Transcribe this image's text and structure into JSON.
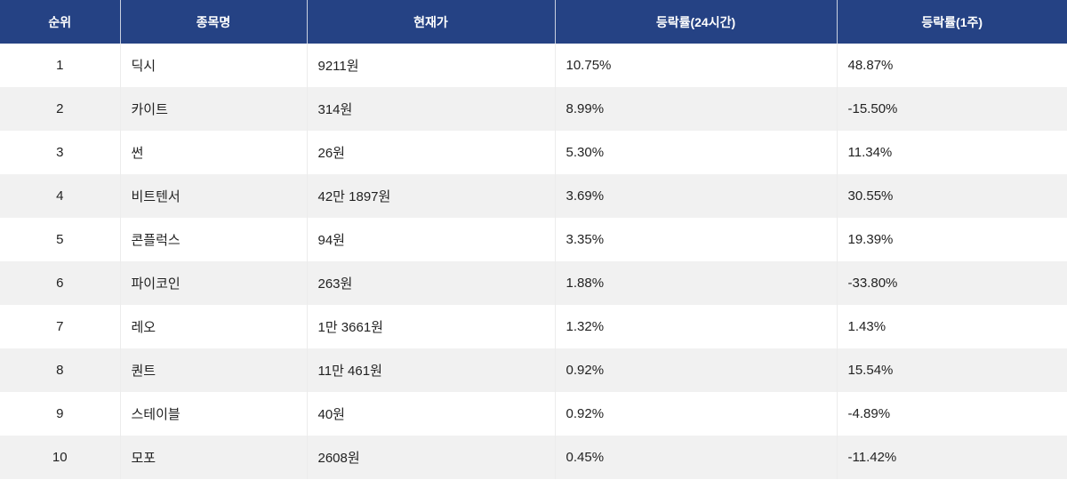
{
  "header": {
    "rank": "순위",
    "name": "종목명",
    "price": "현재가",
    "change24h": "등락률(24시간)",
    "change1w": "등락률(1주)"
  },
  "colors": {
    "header_bg": "#254284",
    "stripe": "#f1f1f1"
  },
  "rows": [
    {
      "rank": "1",
      "name": "딕시",
      "price": "9211원",
      "change24h": "10.75%",
      "change1w": "48.87%"
    },
    {
      "rank": "2",
      "name": "카이트",
      "price": "314원",
      "change24h": "8.99%",
      "change1w": "-15.50%"
    },
    {
      "rank": "3",
      "name": "썬",
      "price": "26원",
      "change24h": "5.30%",
      "change1w": "11.34%"
    },
    {
      "rank": "4",
      "name": "비트텐서",
      "price": "42만 1897원",
      "change24h": "3.69%",
      "change1w": "30.55%"
    },
    {
      "rank": "5",
      "name": "콘플럭스",
      "price": "94원",
      "change24h": "3.35%",
      "change1w": "19.39%"
    },
    {
      "rank": "6",
      "name": "파이코인",
      "price": "263원",
      "change24h": "1.88%",
      "change1w": "-33.80%"
    },
    {
      "rank": "7",
      "name": "레오",
      "price": "1만 3661원",
      "change24h": "1.32%",
      "change1w": "1.43%"
    },
    {
      "rank": "8",
      "name": "퀀트",
      "price": "11만 461원",
      "change24h": "0.92%",
      "change1w": "15.54%"
    },
    {
      "rank": "9",
      "name": "스테이블",
      "price": "40원",
      "change24h": "0.92%",
      "change1w": "-4.89%"
    },
    {
      "rank": "10",
      "name": "모포",
      "price": "2608원",
      "change24h": "0.45%",
      "change1w": "-11.42%"
    }
  ]
}
